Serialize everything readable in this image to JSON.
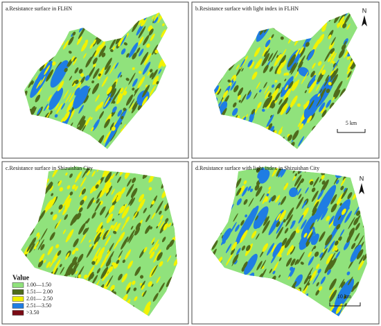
{
  "panels": [
    {
      "title": "a.Resistance surface in FLHN"
    },
    {
      "title": "b.Resistance surface with light index in FLHN"
    },
    {
      "title": "c.Resistance surface in Shizuishan City"
    },
    {
      "title": "d.Resistance surface with light index in Shizuishan City"
    }
  ],
  "legend": {
    "title": "Value",
    "items": [
      {
        "label": "1.00—1.50",
        "color": "#90e27c"
      },
      {
        "label": "1.51— 2.00",
        "color": "#4f6b1c"
      },
      {
        "label": "2.01— 2.50",
        "color": "#f2f200"
      },
      {
        "label": "2.51—3.50",
        "color": "#1f7de3"
      },
      {
        "label": ">3.50",
        "color": "#7a0a14"
      }
    ]
  },
  "north_labels": [
    "N",
    "N"
  ],
  "scale_bars": [
    "5 km",
    "10 km"
  ]
}
